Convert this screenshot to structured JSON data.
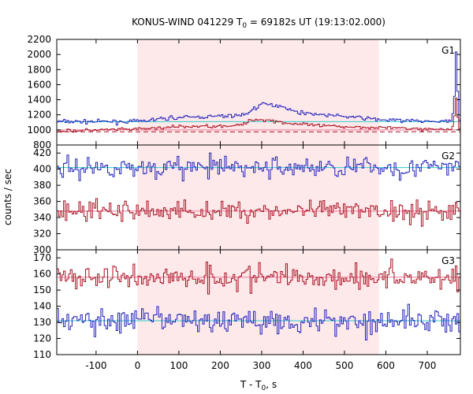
{
  "figure": {
    "title_prefix": "KONUS-WIND 041229 T",
    "title_sub": "0",
    "title_suffix": " = 69182s UT (19:13:02.000)",
    "ylabel": "counts / sec",
    "xlabel_prefix": "T - T",
    "xlabel_sub": "0",
    "xlabel_suffix": ", s",
    "colors": {
      "blue_series": "#2222bb",
      "red_series": "#aa1122",
      "background_fit_blue": "#33cccc",
      "background_fit_red": "#ee7799",
      "highlight": "#fde8ea"
    }
  },
  "chart_data": [
    {
      "type": "line",
      "panel": "G1",
      "xlim": [
        -195,
        780
      ],
      "ylim": [
        800,
        2200
      ],
      "xticks": [
        -100,
        0,
        100,
        200,
        300,
        400,
        500,
        600,
        700
      ],
      "yticks": [
        800,
        1000,
        1200,
        1400,
        1600,
        1800,
        2000,
        2200
      ],
      "shaded_interval": [
        0,
        583
      ],
      "series": [
        {
          "color": "blue",
          "profile": [
            [
              -195,
              1110
            ],
            [
              0,
              1110
            ],
            [
              80,
              1160
            ],
            [
              200,
              1180
            ],
            [
              260,
              1200
            ],
            [
              280,
              1280
            ],
            [
              300,
              1340
            ],
            [
              350,
              1320
            ],
            [
              380,
              1240
            ],
            [
              450,
              1200
            ],
            [
              520,
              1170
            ],
            [
              600,
              1130
            ],
            [
              740,
              1110
            ],
            [
              760,
              1110
            ],
            [
              766,
              1500
            ],
            [
              770,
              2100
            ],
            [
              773,
              1600
            ],
            [
              778,
              1110
            ],
            [
              780,
              1110
            ]
          ],
          "noise": 18
        },
        {
          "color": "red",
          "profile": [
            [
              -195,
              985
            ],
            [
              0,
              1010
            ],
            [
              100,
              1040
            ],
            [
              250,
              1060
            ],
            [
              280,
              1140
            ],
            [
              320,
              1130
            ],
            [
              360,
              1090
            ],
            [
              450,
              1050
            ],
            [
              600,
              1030
            ],
            [
              700,
              1010
            ],
            [
              760,
              1010
            ],
            [
              766,
              1200
            ],
            [
              770,
              1450
            ],
            [
              773,
              1200
            ],
            [
              778,
              1010
            ],
            [
              780,
              1010
            ]
          ],
          "noise": 15
        }
      ],
      "background_fits": [
        {
          "color": "cyan",
          "y": 1110
        },
        {
          "color": "pink",
          "y": 1000
        },
        {
          "color": "red",
          "y": 975,
          "style": "dashed"
        }
      ]
    },
    {
      "type": "line",
      "panel": "G2",
      "xlim": [
        -195,
        780
      ],
      "ylim": [
        300,
        430
      ],
      "xticks": [
        -100,
        0,
        100,
        200,
        300,
        400,
        500,
        600,
        700
      ],
      "yticks": [
        300,
        320,
        340,
        360,
        380,
        400,
        420
      ],
      "shaded_interval": [
        0,
        583
      ],
      "series": [
        {
          "color": "blue",
          "profile": [
            [
              -195,
              402
            ],
            [
              780,
              402
            ]
          ],
          "noise": 9
        },
        {
          "color": "red",
          "profile": [
            [
              -195,
              348
            ],
            [
              780,
              348
            ]
          ],
          "noise": 9
        }
      ],
      "background_fits": [
        {
          "color": "cyan",
          "y": 402
        },
        {
          "color": "pink",
          "y": 348
        }
      ]
    },
    {
      "type": "line",
      "panel": "G3",
      "xlim": [
        -195,
        780
      ],
      "ylim": [
        110,
        175
      ],
      "xticks": [
        -100,
        0,
        100,
        200,
        300,
        400,
        500,
        600,
        700
      ],
      "yticks": [
        110,
        120,
        130,
        140,
        150,
        160,
        170
      ],
      "shaded_interval": [
        0,
        583
      ],
      "series": [
        {
          "color": "red",
          "profile": [
            [
              -195,
              158
            ],
            [
              780,
              158
            ]
          ],
          "noise": 5.5
        },
        {
          "color": "blue",
          "profile": [
            [
              -195,
              131
            ],
            [
              780,
              131
            ]
          ],
          "noise": 5.5
        }
      ],
      "background_fits": [
        {
          "color": "pink",
          "y": 158
        },
        {
          "color": "cyan",
          "y": 131
        }
      ]
    }
  ]
}
